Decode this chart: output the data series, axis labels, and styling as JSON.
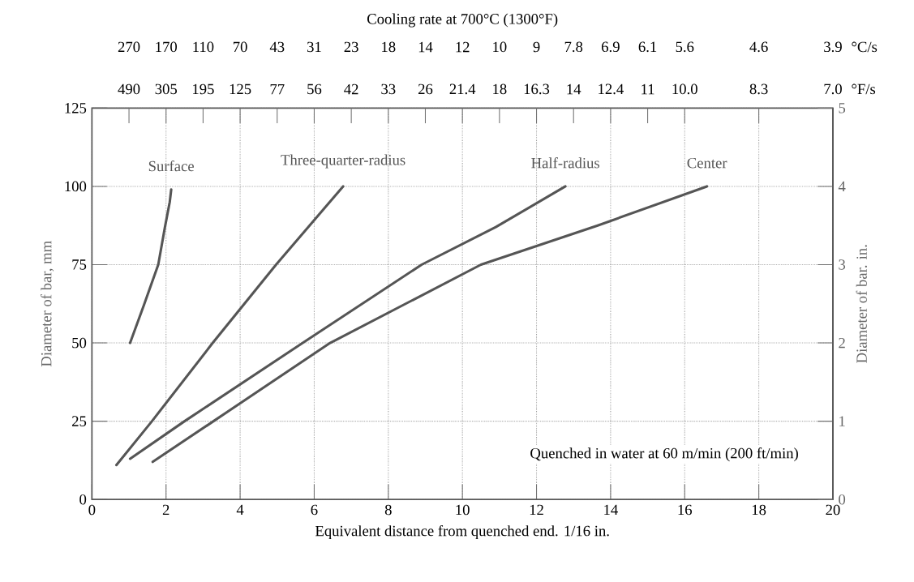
{
  "chart_data": {
    "type": "line",
    "xlabel": "Equivalent distance from quenched end. 1/16 in.",
    "ylabel": "Diameter of bar, mm",
    "y2label": "Diameter of bar. in.",
    "x2label": "Cooling rate at 700°C (1300°F)",
    "xlim": [
      0,
      20
    ],
    "xticks": [
      0,
      2,
      4,
      6,
      8,
      10,
      12,
      14,
      16,
      18,
      20
    ],
    "ylim": [
      0,
      125
    ],
    "yticks": [
      0,
      25,
      50,
      75,
      100,
      125
    ],
    "y2lim": [
      0,
      5
    ],
    "y2ticks": [
      0,
      1,
      2,
      3,
      4,
      5
    ],
    "grid": true,
    "series": [
      {
        "name": "Surface",
        "color": "#555555",
        "x": [
          1.03,
          1.4,
          1.79,
          1.97,
          2.1,
          2.14
        ],
        "values": [
          50,
          62,
          75,
          87,
          95,
          99
        ]
      },
      {
        "name": "Three-quarter-radius",
        "color": "#555555",
        "x": [
          0.66,
          1.62,
          3.26,
          4.97,
          6.78
        ],
        "values": [
          11,
          25,
          50,
          75,
          100
        ]
      },
      {
        "name": "Half-radius",
        "color": "#555555",
        "x": [
          1.03,
          2.5,
          5.69,
          8.9,
          10.9,
          12.78
        ],
        "values": [
          13,
          25,
          50,
          75,
          87,
          100
        ]
      },
      {
        "name": "Center",
        "color": "#555555",
        "x": [
          1.64,
          3.28,
          6.43,
          10.5,
          13.65,
          16.6
        ],
        "values": [
          12,
          25,
          50,
          75,
          87.5,
          100
        ]
      }
    ],
    "annotations": [
      "Quenched in water at 60 m/min (200 ft/min)",
      "270",
      "170",
      "110",
      "70",
      "43",
      "31",
      "23",
      "18",
      "14",
      "12",
      "10",
      "9",
      "7.8",
      "6.9",
      "6.1",
      "5.6",
      "4.6",
      "3.9",
      "°C/s",
      "490",
      "305",
      "195",
      "125",
      "77",
      "56",
      "42",
      "33",
      "26",
      "21.4",
      "18",
      "16.3",
      "14",
      "12.4",
      "11",
      "10.0",
      "8.3",
      "7.0",
      "°F/s"
    ]
  }
}
